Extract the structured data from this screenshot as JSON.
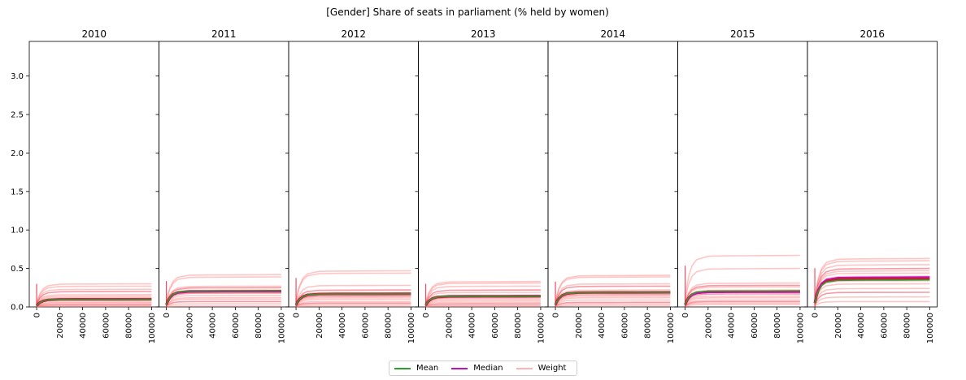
{
  "chart_data": {
    "type": "line",
    "title": "[Gender] Share of seats in parliament (% held by women)",
    "ylim": [
      0,
      3.45
    ],
    "xlim": [
      -5000,
      105000
    ],
    "y_ticks": [
      "0.0",
      "0.5",
      "1.0",
      "1.5",
      "2.0",
      "2.5",
      "3.0"
    ],
    "x_ticks": [
      "0",
      "20000",
      "40000",
      "60000",
      "80000",
      "100000"
    ],
    "grid": false,
    "legend_position": "bottom-center",
    "colors": {
      "mean": "#2ca02c",
      "median": "#c20fc2",
      "weight": "#ff8080",
      "weight_dark": "#e8203a"
    },
    "panels": [
      {
        "title": "2010",
        "mean_end": 0.1,
        "median_end": 0.1,
        "weights_end": [
          0.3,
          0.27,
          0.23,
          0.2,
          0.16,
          0.14,
          0.12,
          0.1,
          0.08,
          0.06,
          0.05,
          0.03,
          0.02,
          0.01
        ]
      },
      {
        "title": "2011",
        "mean_end": 0.21,
        "median_end": 0.2,
        "weights_end": [
          0.42,
          0.39,
          0.27,
          0.25,
          0.22,
          0.21,
          0.2,
          0.18,
          0.15,
          0.12,
          0.1,
          0.07,
          0.04,
          0.01
        ]
      },
      {
        "title": "2012",
        "mean_end": 0.17,
        "median_end": 0.17,
        "weights_end": [
          0.47,
          0.44,
          0.28,
          0.22,
          0.19,
          0.17,
          0.16,
          0.14,
          0.12,
          0.1,
          0.07,
          0.05,
          0.03,
          0.01
        ]
      },
      {
        "title": "2013",
        "mean_end": 0.14,
        "median_end": 0.14,
        "weights_end": [
          0.33,
          0.31,
          0.27,
          0.22,
          0.19,
          0.15,
          0.14,
          0.12,
          0.1,
          0.08,
          0.06,
          0.04,
          0.02,
          0.01
        ]
      },
      {
        "title": "2014",
        "mean_end": 0.19,
        "median_end": 0.19,
        "weights_end": [
          0.41,
          0.39,
          0.3,
          0.27,
          0.22,
          0.19,
          0.18,
          0.16,
          0.14,
          0.12,
          0.09,
          0.06,
          0.04,
          0.02
        ]
      },
      {
        "title": "2015",
        "mean_end": 0.21,
        "median_end": 0.19,
        "weights_end": [
          0.67,
          0.5,
          0.31,
          0.28,
          0.26,
          0.22,
          0.2,
          0.17,
          0.14,
          0.12,
          0.09,
          0.07,
          0.05,
          0.03
        ]
      },
      {
        "title": "2016",
        "mean_end": 0.35,
        "median_end": 0.39,
        "weights_end": [
          0.63,
          0.6,
          0.55,
          0.5,
          0.47,
          0.44,
          0.4,
          0.37,
          0.34,
          0.3,
          0.24,
          0.19,
          0.13,
          0.07
        ]
      }
    ],
    "series": [
      {
        "name": "Mean"
      },
      {
        "name": "Median"
      },
      {
        "name": "Weight"
      }
    ]
  }
}
